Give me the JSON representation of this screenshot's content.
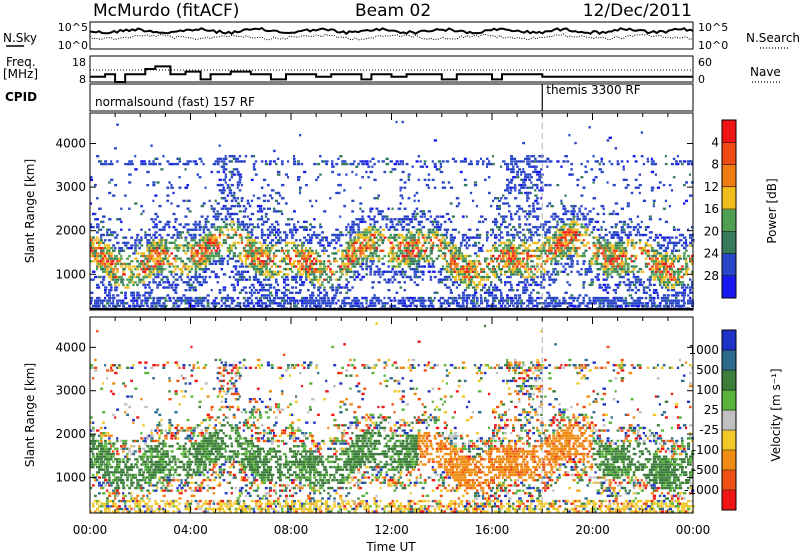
{
  "header": {
    "station": "McMurdo (fitACF)",
    "beam": "Beam 02",
    "date": "12/Dec/2011"
  },
  "noise_panel": {
    "left_label": "N.Sky",
    "left_tick_top": "10^5",
    "left_tick_bottom": "10^0",
    "right_tick_top": "10^5",
    "right_tick_bottom": "10^0",
    "right_label": "N.Search",
    "right_line_style": "dotted"
  },
  "freq_panel": {
    "left_label_line1": "Freq.",
    "left_label_line2": "[MHz]",
    "left_tick_top": "18",
    "left_tick_bottom": "8",
    "right_tick_top": "60",
    "right_tick_bottom": "0",
    "right_label": "Nave",
    "right_line_style": "dotted"
  },
  "cpid_panel": {
    "label": "CPID",
    "mode1": "normalsound (fast) 157 RF",
    "mode2": "themis 3300 RF",
    "switch_hour": 18
  },
  "chart_data": [
    {
      "type": "heatmap",
      "name": "power",
      "ylabel": "Slant Range [km]",
      "yticks": [
        1000,
        2000,
        3000,
        4000
      ],
      "ylim": [
        180,
        4700
      ],
      "xlim": [
        0,
        24
      ],
      "colorbar": {
        "label": "Power [dB]",
        "ticks": [
          "4",
          "8",
          "12",
          "16",
          "20",
          "24",
          "28"
        ],
        "colors": [
          "#1717f0",
          "#2a46c8",
          "#357a5a",
          "#4f9f52",
          "#f2be1e",
          "#f07d14",
          "#f04b14",
          "#f01414"
        ]
      }
    },
    {
      "type": "heatmap",
      "name": "velocity",
      "ylabel": "Slant Range [km]",
      "yticks": [
        1000,
        2000,
        3000,
        4000
      ],
      "ylim": [
        180,
        4700
      ],
      "xlim": [
        0,
        24
      ],
      "colorbar": {
        "label": "Velocity [m s⁻¹]",
        "ticks": [
          "1000",
          "500",
          "100",
          "25",
          "-25",
          "-100",
          "-500",
          "-1000"
        ],
        "colors": [
          "#1e32c8",
          "#2d6a8c",
          "#3c7d3c",
          "#5ab43c",
          "#c0c0c0",
          "#f0c828",
          "#f08c14",
          "#f05014",
          "#f01414"
        ]
      }
    }
  ],
  "xaxis": {
    "tick_labels": [
      "00:00",
      "04:00",
      "08:00",
      "12:00",
      "16:00",
      "20:00",
      "00:00"
    ],
    "title": "Time UT"
  }
}
